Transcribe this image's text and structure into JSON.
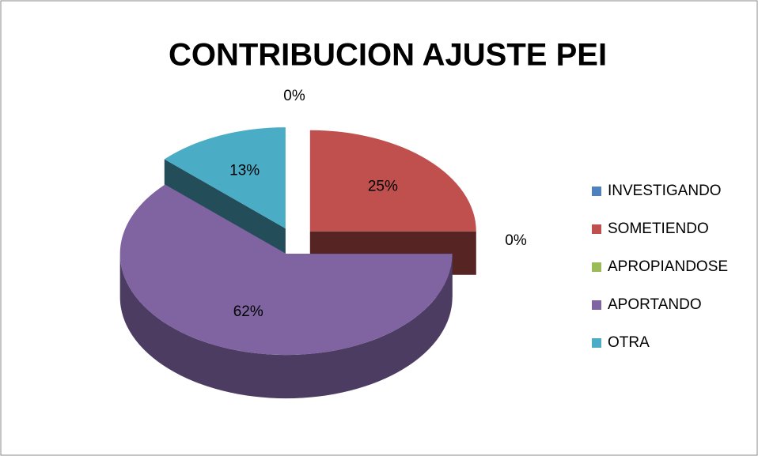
{
  "chart_data": {
    "type": "pie3d",
    "title": "CONTRIBUCION AJUSTE PEI",
    "categories": [
      "INVESTIGANDO",
      "SOMETIENDO",
      "APROPIANDOSE",
      "APORTANDO",
      "OTRA"
    ],
    "values": [
      0,
      25,
      0,
      62,
      13
    ],
    "value_labels": [
      "0%",
      "25%",
      "0%",
      "62%",
      "13%"
    ],
    "colors": [
      "#4F81BD",
      "#C0504D",
      "#9BBB59",
      "#8064A2",
      "#4BACC6"
    ],
    "legend": "right"
  }
}
